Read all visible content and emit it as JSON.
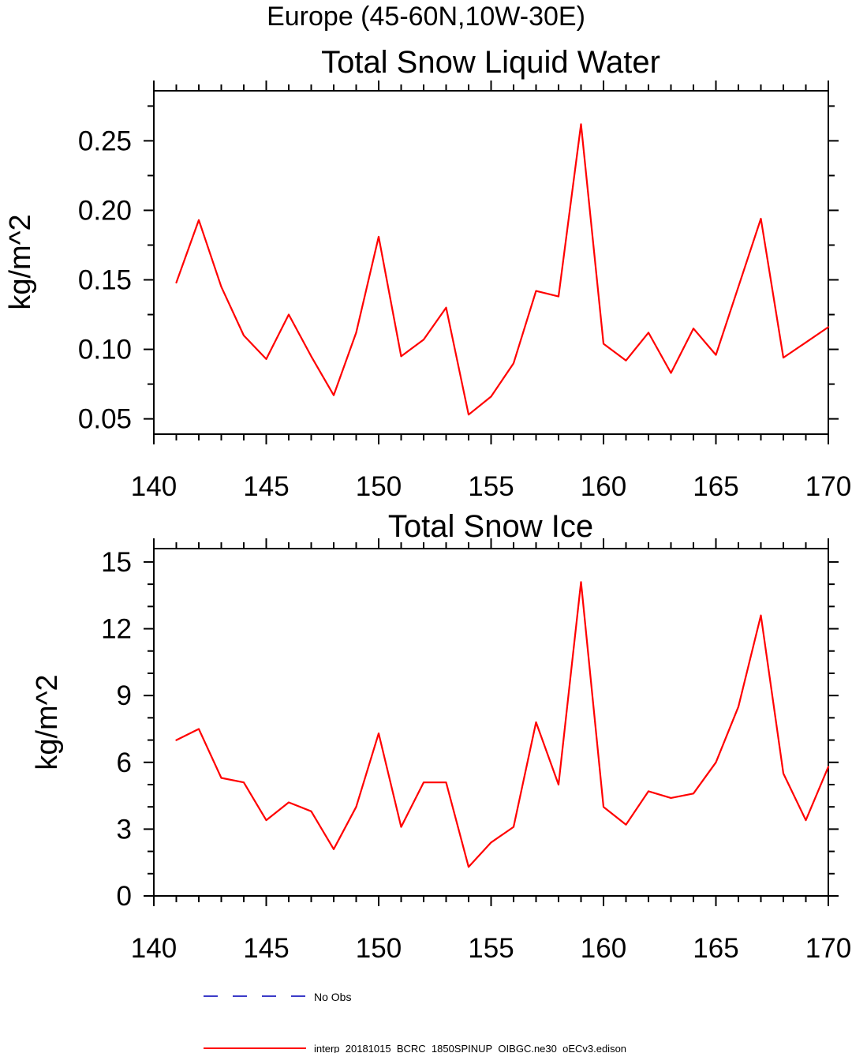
{
  "main_title": "Europe (45-60N,10W-30E)",
  "legend": {
    "items": [
      {
        "label": "No Obs",
        "color": "#3b3bc8",
        "dash": true
      },
      {
        "label": "interp_20181015_BCRC_1850SPINUP_OIBGC.ne30_oECv3.edison",
        "color": "#ff0000",
        "dash": false
      }
    ]
  },
  "chart_data": [
    {
      "type": "line",
      "title": "Total Snow Liquid Water",
      "ylabel": "kg/m^2",
      "xlabel": "",
      "xlim": [
        140,
        170
      ],
      "ylim": [
        0.039,
        0.286
      ],
      "xticks": [
        140,
        145,
        150,
        155,
        160,
        165,
        170
      ],
      "xminor_step": 1,
      "yticks": [
        0.05,
        0.1,
        0.15,
        0.2,
        0.25
      ],
      "ytick_labels": [
        "0.05",
        "0.10",
        "0.15",
        "0.20",
        "0.25"
      ],
      "yminor_step": 0.025,
      "grid": false,
      "x": [
        141,
        142,
        143,
        144,
        145,
        146,
        147,
        148,
        149,
        150,
        151,
        152,
        153,
        154,
        155,
        156,
        157,
        158,
        159,
        160,
        161,
        162,
        163,
        164,
        165,
        166,
        167,
        168,
        169,
        170
      ],
      "series": [
        {
          "name": "interp_20181015_BCRC_1850SPINUP_OIBGC.ne30_oECv3.edison",
          "color": "#ff0000",
          "values": [
            0.148,
            0.193,
            0.145,
            0.11,
            0.093,
            0.125,
            0.095,
            0.067,
            0.112,
            0.181,
            0.095,
            0.107,
            0.13,
            0.053,
            0.066,
            0.09,
            0.142,
            0.138,
            0.262,
            0.104,
            0.092,
            0.112,
            0.083,
            0.115,
            0.096,
            0.145,
            0.194,
            0.094,
            0.105,
            0.116
          ]
        }
      ]
    },
    {
      "type": "line",
      "title": "Total Snow Ice",
      "ylabel": "kg/m^2",
      "xlabel": "",
      "xlim": [
        140,
        170
      ],
      "ylim": [
        0,
        15.6
      ],
      "xticks": [
        140,
        145,
        150,
        155,
        160,
        165,
        170
      ],
      "xminor_step": 1,
      "yticks": [
        0,
        3,
        6,
        9,
        12,
        15
      ],
      "ytick_labels": [
        "0",
        "3",
        "6",
        "9",
        "12",
        "15"
      ],
      "yminor_step": 1,
      "grid": false,
      "x": [
        141,
        142,
        143,
        144,
        145,
        146,
        147,
        148,
        149,
        150,
        151,
        152,
        153,
        154,
        155,
        156,
        157,
        158,
        159,
        160,
        161,
        162,
        163,
        164,
        165,
        166,
        167,
        168,
        169,
        170
      ],
      "series": [
        {
          "name": "interp_20181015_BCRC_1850SPINUP_OIBGC.ne30_oECv3.edison",
          "color": "#ff0000",
          "values": [
            7.0,
            7.5,
            5.3,
            5.1,
            3.4,
            4.2,
            3.8,
            2.1,
            4.0,
            7.3,
            3.1,
            5.1,
            5.1,
            1.3,
            2.4,
            3.1,
            7.8,
            5.0,
            14.1,
            4.0,
            3.2,
            4.7,
            4.4,
            4.6,
            6.0,
            8.5,
            12.6,
            5.5,
            3.4,
            5.8
          ]
        }
      ]
    }
  ]
}
